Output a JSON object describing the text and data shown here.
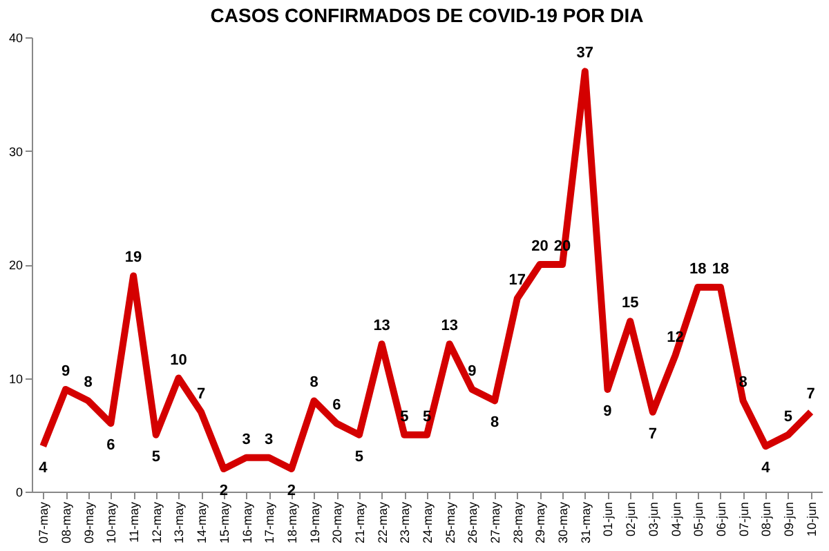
{
  "chart_data": {
    "type": "line",
    "title": "CASOS CONFIRMADOS DE COVID-19 POR DIA",
    "categories": [
      "07-may",
      "08-may",
      "09-may",
      "10-may",
      "11-may",
      "12-may",
      "13-may",
      "14-may",
      "15-may",
      "16-may",
      "17-may",
      "18-may",
      "19-may",
      "20-may",
      "21-may",
      "22-may",
      "23-may",
      "24-may",
      "25-may",
      "26-may",
      "27-may",
      "28-may",
      "29-may",
      "30-may",
      "31-may",
      "01-jun",
      "02-jun",
      "03-jun",
      "04-jun",
      "05-jun",
      "06-jun",
      "07-jun",
      "08-jun",
      "09-jun",
      "10-jun"
    ],
    "series": [
      {
        "color": "#d40000",
        "values": [
          4,
          9,
          8,
          6,
          19,
          5,
          10,
          7,
          2,
          3,
          3,
          2,
          8,
          6,
          5,
          13,
          5,
          5,
          13,
          9,
          8,
          17,
          20,
          20,
          37,
          9,
          15,
          7,
          12,
          18,
          18,
          8,
          4,
          5,
          7
        ]
      }
    ],
    "ylim": [
      0,
      40
    ],
    "yticks": [
      0,
      10,
      20,
      30,
      40
    ],
    "grid": false,
    "data_labels": true,
    "legend": false,
    "marker": "none",
    "line_style": "solid"
  }
}
